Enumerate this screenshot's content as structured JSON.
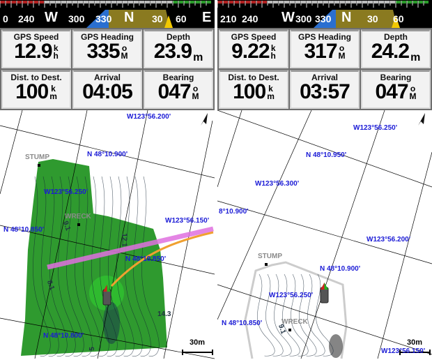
{
  "panels": [
    {
      "compass": {
        "labels": [
          "0",
          "240",
          "W",
          "300",
          "330",
          "N",
          "30",
          "60",
          "E"
        ]
      },
      "fields": [
        {
          "label": "GPS Speed",
          "value": "12.9",
          "unit_top": "k",
          "unit_bottom": "h"
        },
        {
          "label": "GPS Heading",
          "value": "335",
          "unit_top": "o",
          "unit_bottom": "M"
        },
        {
          "label": "Depth",
          "value": "23.9",
          "unit_top": "",
          "unit_bottom": "m"
        },
        {
          "label": "Dist. to Dest.",
          "value": "100",
          "unit_top": "k",
          "unit_bottom": "m"
        },
        {
          "label": "Arrival",
          "value": "04:05",
          "unit_top": "",
          "unit_bottom": ""
        },
        {
          "label": "Bearing",
          "value": "047",
          "unit_top": "o",
          "unit_bottom": "M"
        }
      ],
      "map": {
        "grid_labels": [
          "W123°56.200'",
          "N 48°10.900'",
          "W123°56.250'",
          "N 48°10.850'",
          "W123°56.150'",
          "N 48°10.850'",
          "N 48°10.800'"
        ],
        "poi": [
          "STUMP",
          "WRECK"
        ],
        "depth_labels": [
          "9.1",
          "12.1",
          "8.1",
          "14.3",
          "5"
        ],
        "scale": "30m",
        "relief_shading": true
      }
    },
    {
      "compass": {
        "labels": [
          "210",
          "240",
          "W",
          "300",
          "330",
          "N",
          "30",
          "60"
        ]
      },
      "fields": [
        {
          "label": "GPS Speed",
          "value": "9.22",
          "unit_top": "k",
          "unit_bottom": "h"
        },
        {
          "label": "GPS Heading",
          "value": "317",
          "unit_top": "o",
          "unit_bottom": "M"
        },
        {
          "label": "Depth",
          "value": "24.2",
          "unit_top": "",
          "unit_bottom": "m"
        },
        {
          "label": "Dist. to Dest.",
          "value": "100",
          "unit_top": "k",
          "unit_bottom": "m"
        },
        {
          "label": "Arrival",
          "value": "03:57",
          "unit_top": "",
          "unit_bottom": ""
        },
        {
          "label": "Bearing",
          "value": "047",
          "unit_top": "o",
          "unit_bottom": "M"
        }
      ],
      "map": {
        "grid_labels": [
          "W123°56.250'",
          "N 48°10.950'",
          "W123°56.300'",
          "8°10.900'",
          "W123°56.200'",
          "N 48°10.900'",
          "W123°56.250'",
          "N 48°10.850'",
          "W123°56.150'"
        ],
        "poi": [
          "STUMP",
          "WRECK"
        ],
        "depth_labels": [
          "9.1"
        ],
        "scale": "30m",
        "relief_shading": false
      }
    }
  ],
  "colors": {
    "grid_label": "#1a1ad6",
    "relief": "#2f9a2f",
    "course_line": "#e070e0",
    "heading_line": "#f0a030",
    "compass_bg": "#000000"
  }
}
